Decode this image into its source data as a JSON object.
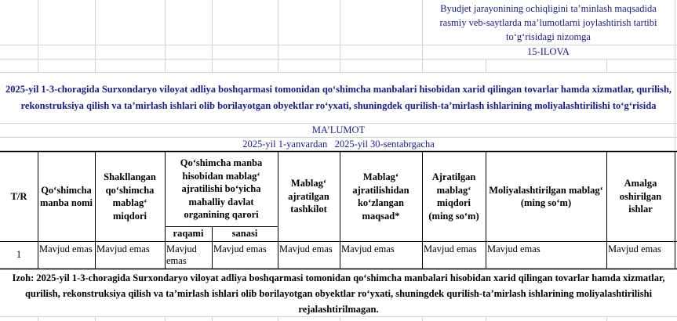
{
  "header_note": {
    "lines": [
      "Byudjet jarayonining ochiqligini ta’minlash maqsadida",
      "rasmiy veb-saytlarda ma’lumotlarni joylashtirish tartibi",
      "to‘g‘risidagi nizomga"
    ],
    "appendix": "15-ILOVA"
  },
  "title": "2025-yil 1-3-choragida Surxondaryo viloyat adliya boshqarmasi tomonidan qo‘shimcha manbalari hisobidan xarid qilingan tovarlar hamda xizmatlar, qurilish, rekonstruksiya qilish va ta’mirlash ishlari olib borilayotgan obyektlar ro‘yxati, shuningdek qurilish-ta’mirlash ishlarining moliyalashtirilishi to‘g‘risida",
  "subtitle": "MA’LUMOT",
  "period": "2025-yil 1-yanvardan   2025-yil 30-sentabrgacha",
  "table": {
    "headers": [
      "T/R",
      "Qo‘shimcha manba nomi",
      "Shakllangan qo‘shimcha mablag‘ miqdori",
      "Qo‘shimcha manba hisobidan mablag‘ ajratilishi bo‘yicha mahalliy davlat organining qarori",
      "Mablag‘ ajratilgan tashkilot",
      "Mablag‘ ajratilishidan ko‘zlangan maqsad*",
      "Ajratilgan mablag‘ miqdori (ming so‘m)",
      "Moliyalashtirilgan mablag‘ (ming so‘m)",
      "Amalga oshirilgan ishlar"
    ],
    "subheaders": [
      "raqami",
      "sanasi"
    ],
    "rows": [
      [
        "1",
        "Mavjud emas",
        "Mavjud emas",
        "Mavjud emas",
        "Mavjud emas",
        "Mavjud emas",
        "Mavjud emas",
        "Mavjud emas",
        "Mavjud emas",
        "Mavjud emas"
      ]
    ]
  },
  "note": "Izoh:  2025-yil 1-3-choragida Surxondaryo viloyat adliya boshqarmasi tomonidan qo‘shimcha manbalari hisobidan xarid qilingan tovarlar hamda xizmatlar, qurilish, rekonstruksiya qilish va ta’mirlash ishlari olib borilayotgan obyektlar ro‘yxati, shuningdek qurilish-ta’mirlash ishlarining moliyalashtirilishi rejalashtirilmagan."
}
